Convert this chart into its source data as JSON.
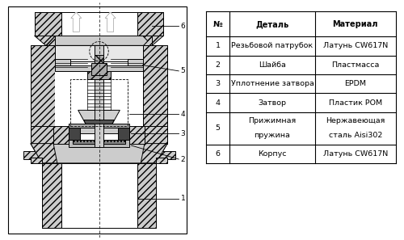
{
  "bg_color": "#ffffff",
  "table_headers": [
    "№",
    "Деталь",
    "Материал"
  ],
  "table_rows": [
    [
      "1",
      "Резьбовой патрубок",
      "Латунь CW617N"
    ],
    [
      "2",
      "Шайба",
      "Пластмасса"
    ],
    [
      "3",
      "Уплотнение затвора",
      "EPDM"
    ],
    [
      "4",
      "Затвор",
      "Пластик POM"
    ],
    [
      "5",
      "Прижимная\nпружина",
      "Нержавеющая\nсталь Aisi302"
    ],
    [
      "6",
      "Корпус",
      "Латунь CW617N"
    ]
  ],
  "light_gray": "#cccccc",
  "mid_gray": "#aaaaaa",
  "dark_gray": "#555555",
  "very_dark": "#222222",
  "white": "#ffffff",
  "hatch_gray": "#bbbbbb"
}
